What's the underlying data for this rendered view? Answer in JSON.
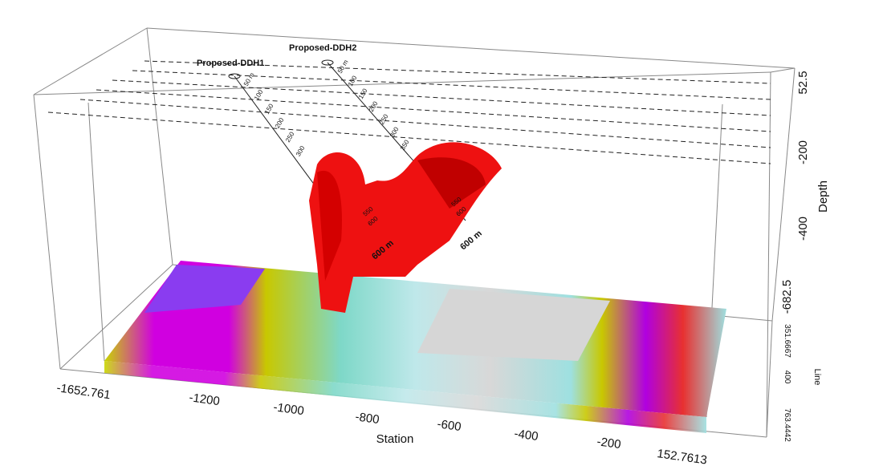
{
  "drillholes": [
    {
      "name": "Proposed-DDH1",
      "depth_marks": [
        "50 m",
        "100",
        "150",
        "200",
        "250",
        "300"
      ],
      "end_marks": [
        "550",
        "600",
        "600 m"
      ]
    },
    {
      "name": "Proposed-DDH2",
      "depth_marks": [
        "50 m",
        "100",
        "150",
        "200",
        "250",
        "300",
        "350"
      ],
      "end_marks": [
        "550",
        "600",
        "600 m"
      ]
    }
  ],
  "axes": {
    "station": {
      "title": "Station",
      "ticks": [
        "-1652.761",
        "-1200",
        "-1000",
        "-800",
        "-600",
        "-400",
        "-200",
        "152.7613"
      ]
    },
    "depth": {
      "title": "Depth",
      "ticks": [
        "52.5",
        "-200",
        "-400",
        "-682.5"
      ]
    },
    "line": {
      "title": "Line",
      "ticks": [
        "351.6667",
        "400",
        "763.4442"
      ]
    }
  }
}
